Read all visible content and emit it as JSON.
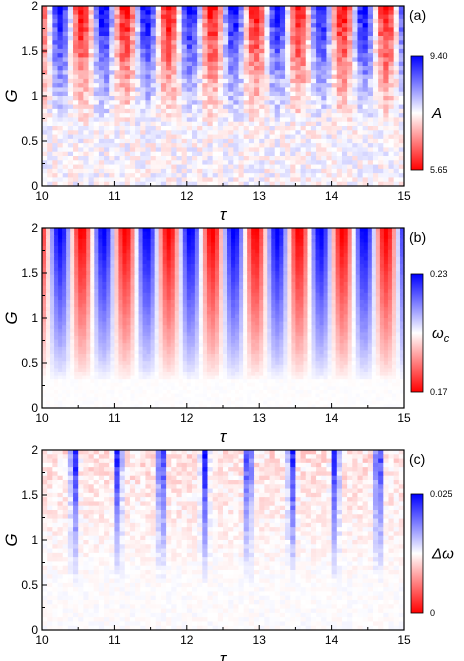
{
  "chart_data": [
    {
      "type": "heatmap",
      "panel_label": "(a)",
      "xlabel": "τ",
      "ylabel": "G",
      "xlim": [
        10,
        15
      ],
      "ylim": [
        0,
        2
      ],
      "xticks": [
        "10",
        "11",
        "12",
        "13",
        "14",
        "15"
      ],
      "yticks": [
        "0",
        "0.5",
        "1",
        "1.5",
        "2"
      ],
      "colorbar": {
        "label": "A",
        "label_sub": "",
        "max": "9.40",
        "min": "5.65",
        "colors": [
          "#ff0000",
          "#ffffff",
          "#0000ff"
        ]
      },
      "pattern": {
        "stripe_period_tau": 0.6,
        "stripe_phase_tau": 10.1,
        "onset_G": 0.6,
        "noise": 0.35,
        "bias": 0.0,
        "rows": 42,
        "cols": 70
      }
    },
    {
      "type": "heatmap",
      "panel_label": "(b)",
      "xlabel": "τ",
      "ylabel": "G",
      "xlim": [
        10,
        15
      ],
      "ylim": [
        0,
        2
      ],
      "xticks": [
        "10",
        "11",
        "12",
        "13",
        "14",
        "15"
      ],
      "yticks": [
        "0",
        "0.5",
        "1",
        "1.5",
        "2"
      ],
      "colorbar": {
        "label": "ω",
        "label_sub": "c",
        "max": "0.23",
        "min": "0.17",
        "colors": [
          "#ff0000",
          "#ffffff",
          "#0000ff"
        ]
      },
      "pattern": {
        "stripe_period_tau": 0.6,
        "stripe_phase_tau": 10.1,
        "onset_G": 0.3,
        "noise": 0.04,
        "bias": 0.0,
        "rows": 50,
        "cols": 90
      }
    },
    {
      "type": "heatmap",
      "panel_label": "(c)",
      "xlabel": "τ",
      "ylabel": "G",
      "xlim": [
        10,
        15
      ],
      "ylim": [
        0,
        2
      ],
      "xticks": [
        "10",
        "11",
        "12",
        "13",
        "14",
        "15"
      ],
      "yticks": [
        "0",
        "0.5",
        "1",
        "1.5",
        "2"
      ],
      "colorbar": {
        "label": "Δω",
        "label_sub": "",
        "max": "0.025",
        "min": "0",
        "colors": [
          "#ff0000",
          "#ffffff",
          "#0000ff"
        ]
      },
      "pattern": {
        "stripe_period_tau": 0.6,
        "stripe_phase_tau": 10.3,
        "onset_G": 0.5,
        "noise": 0.22,
        "bias": 0.1,
        "rows": 42,
        "cols": 70
      }
    }
  ]
}
